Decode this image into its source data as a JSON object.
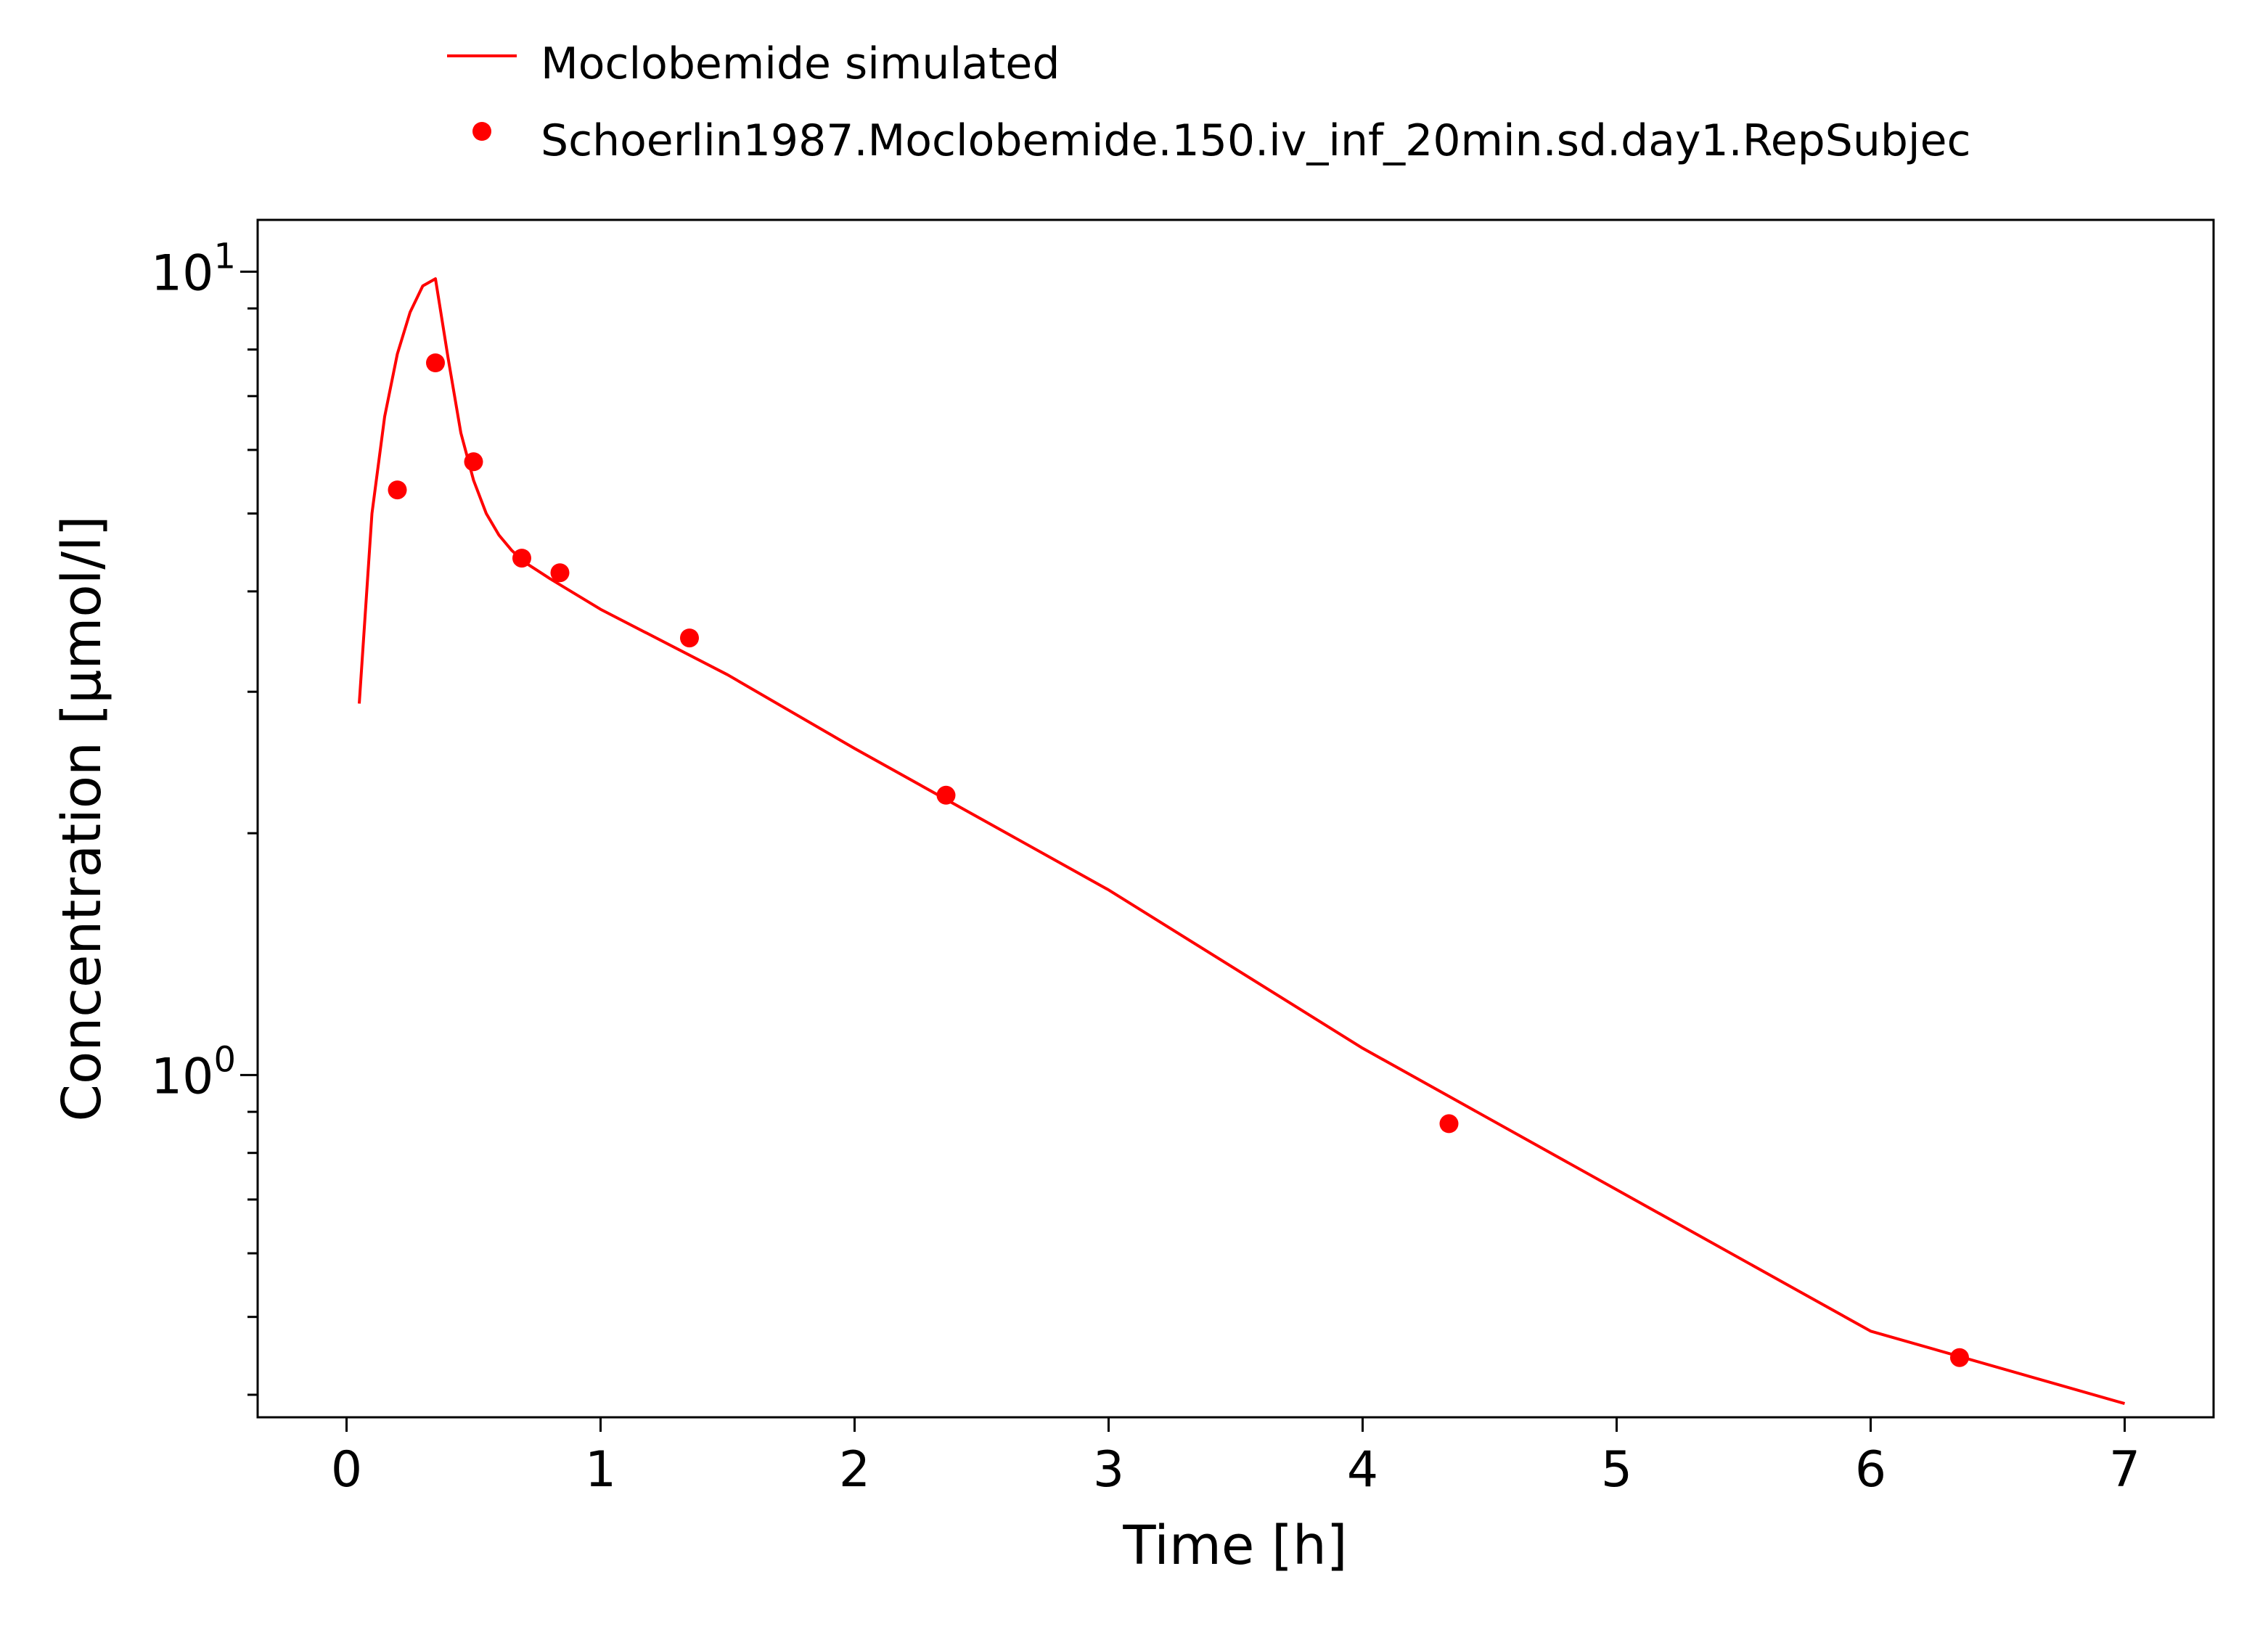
{
  "chart_data": {
    "type": "line",
    "title": "",
    "xlabel": "Time [h]",
    "ylabel": "Concentration [µmol/l]",
    "xlim": [
      -0.35,
      7.35
    ],
    "ylim": [
      0.375,
      11.6
    ],
    "yscale": "log",
    "x_ticks": [
      0,
      1,
      2,
      3,
      4,
      5,
      6,
      7
    ],
    "y_ticks": [
      {
        "value": 10,
        "base": "10",
        "exp": "1"
      },
      {
        "value": 1,
        "base": "10",
        "exp": "0"
      }
    ],
    "y_minor_ticks": [
      0.4,
      0.5,
      0.6,
      0.7,
      0.8,
      0.9,
      2,
      3,
      4,
      5,
      6,
      7,
      8,
      9
    ],
    "grid": false,
    "legend_position": "top-center-outside",
    "series": [
      {
        "name": "Moclobemide simulated",
        "style": "line",
        "color": "#ff0000",
        "x": [
          0.05,
          0.1,
          0.15,
          0.2,
          0.25,
          0.3,
          0.35,
          0.4,
          0.45,
          0.5,
          0.55,
          0.6,
          0.65,
          0.7,
          0.75,
          0.8,
          1.0,
          1.5,
          2.0,
          3.0,
          4.0,
          5.0,
          6.0,
          7.0
        ],
        "y": [
          2.9,
          5.0,
          6.6,
          7.9,
          8.9,
          9.6,
          9.8,
          7.8,
          6.3,
          5.5,
          5.0,
          4.7,
          4.5,
          4.35,
          4.25,
          4.15,
          3.8,
          3.15,
          2.55,
          1.7,
          1.08,
          0.72,
          0.48,
          0.39
        ]
      },
      {
        "name": "Schoerlin1987.Moclobemide.150.iv_inf_20min.sd.day1.RepSubjec",
        "style": "markers",
        "color": "#ff0000",
        "x": [
          0.2,
          0.35,
          0.5,
          0.69,
          0.84,
          1.35,
          2.36,
          4.34,
          6.35
        ],
        "y": [
          5.35,
          7.7,
          5.8,
          4.4,
          4.22,
          3.5,
          2.23,
          0.87,
          0.445
        ]
      }
    ]
  }
}
